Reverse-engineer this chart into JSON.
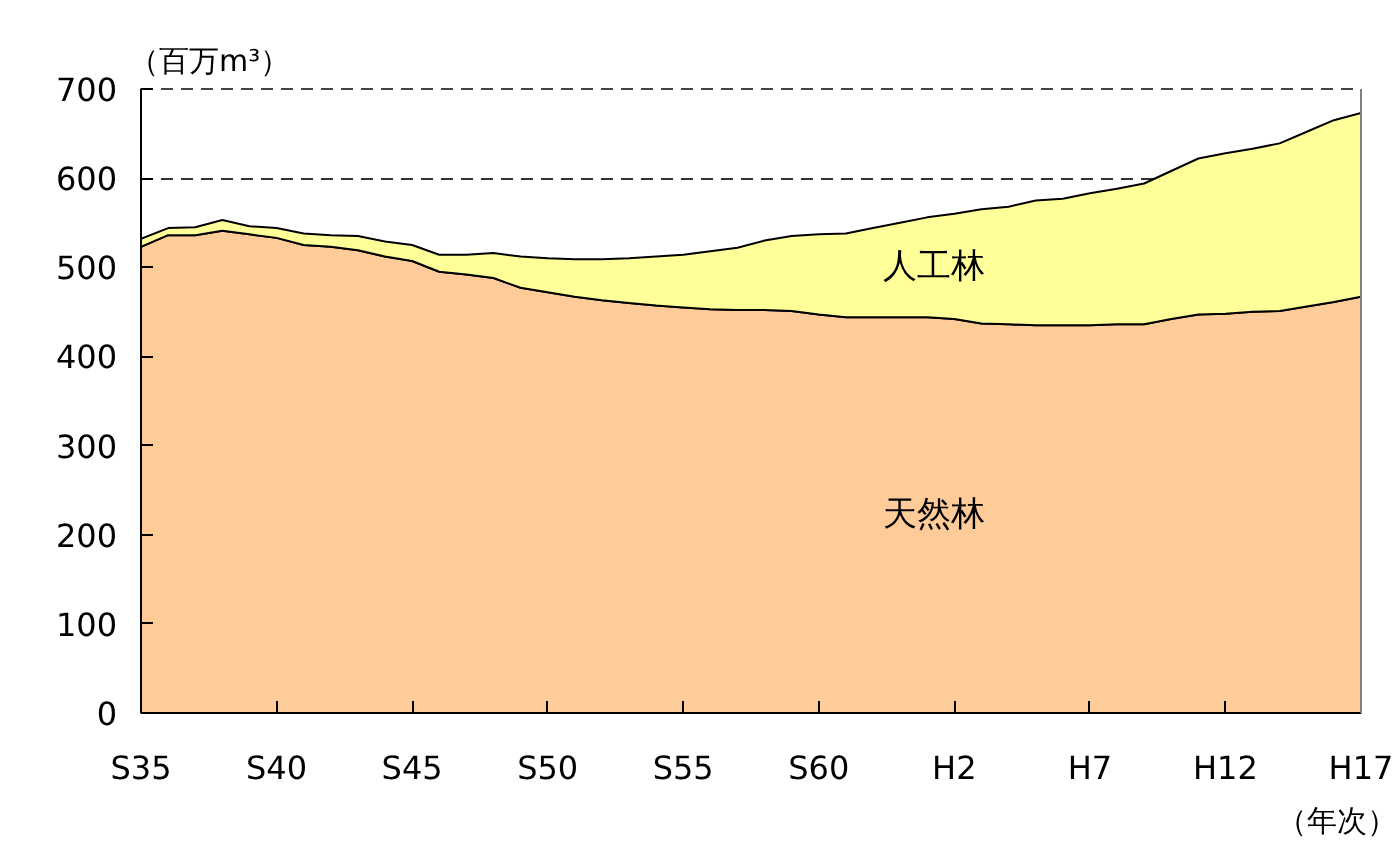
{
  "chart_data": {
    "type": "area",
    "stacked": true,
    "ylabel": "（百万m³）",
    "xlabel": "（年次）",
    "categories": [
      "S35",
      null,
      null,
      null,
      null,
      "S40",
      null,
      null,
      null,
      null,
      "S45",
      null,
      null,
      null,
      null,
      "S50",
      null,
      null,
      null,
      null,
      "S55",
      null,
      null,
      null,
      null,
      "S60",
      null,
      null,
      null,
      null,
      "H2",
      null,
      null,
      null,
      null,
      "H7",
      null,
      null,
      null,
      null,
      "H12",
      null,
      null,
      null,
      null,
      "H17"
    ],
    "series": [
      {
        "name": "天然林",
        "color": "#ffcc99",
        "values": [
          523,
          536,
          536,
          541,
          537,
          533,
          525,
          523,
          519,
          512,
          507,
          495,
          492,
          488,
          477,
          472,
          467,
          463,
          460,
          457,
          455,
          453,
          452,
          452,
          451,
          447,
          444,
          444,
          444,
          444,
          442,
          437,
          436,
          435,
          435,
          435,
          436,
          436,
          442,
          447,
          448,
          450,
          451,
          456,
          461,
          467
        ]
      },
      {
        "name": "人工林",
        "color": "#ffff99",
        "values": [
          9,
          8,
          9,
          12,
          9,
          11,
          13,
          13,
          16,
          17,
          18,
          19,
          22,
          28,
          35,
          38,
          42,
          46,
          50,
          55,
          59,
          65,
          70,
          78,
          84,
          90,
          94,
          100,
          106,
          112,
          118,
          128,
          132,
          140,
          142,
          148,
          152,
          158,
          166,
          175,
          180,
          183,
          188,
          196,
          204,
          206
        ]
      }
    ],
    "ylim": [
      0,
      700
    ],
    "yticks": [
      0,
      100,
      200,
      300,
      400,
      500,
      600,
      700
    ],
    "grid": "y"
  }
}
